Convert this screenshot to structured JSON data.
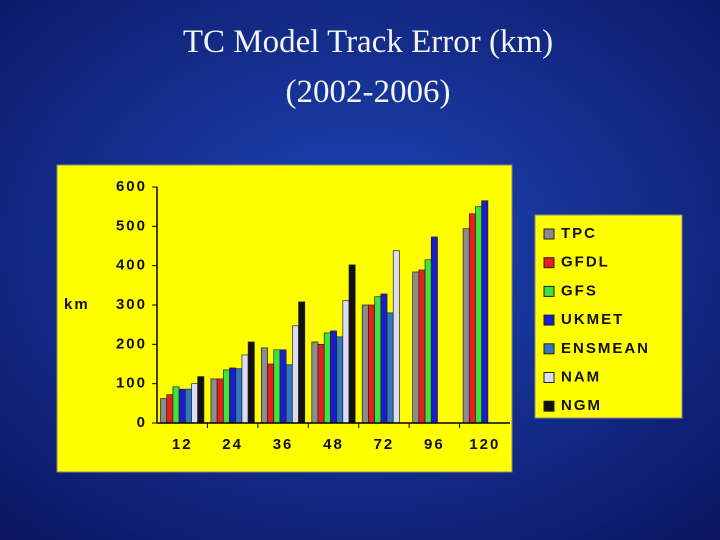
{
  "chart_data": {
    "type": "bar",
    "title": "TC Model Track Error (km)",
    "subtitle": "(2002-2006)",
    "y_label": "km",
    "categories": [
      "12",
      "24",
      "36",
      "48",
      "72",
      "96",
      "120"
    ],
    "series": [
      {
        "name": "TPC",
        "color": "#8c8c8c",
        "values": [
          62,
          112,
          191,
          206,
          300,
          384,
          494
        ]
      },
      {
        "name": "GFDL",
        "color": "#e8201c",
        "values": [
          72,
          112,
          150,
          200,
          300,
          389,
          532
        ]
      },
      {
        "name": "GFS",
        "color": "#3ce43c",
        "values": [
          92,
          135,
          186,
          229,
          321,
          415,
          550
        ]
      },
      {
        "name": "UKMET",
        "color": "#1c1ccc",
        "values": [
          86,
          140,
          186,
          234,
          328,
          473,
          565
        ]
      },
      {
        "name": "ENSMEAN",
        "color": "#2f78c0",
        "values": [
          86,
          138,
          148,
          219,
          280,
          null,
          null
        ]
      },
      {
        "name": "NAM",
        "color": "#dcdcf4",
        "values": [
          100,
          173,
          247,
          311,
          438,
          null,
          null
        ]
      },
      {
        "name": "NGM",
        "color": "#111111",
        "values": [
          118,
          206,
          308,
          402,
          null,
          null,
          null
        ]
      }
    ],
    "ylim": [
      0,
      600
    ],
    "yticks": [
      0,
      100,
      200,
      300,
      400,
      500,
      600
    ],
    "grid": false,
    "legend": "right"
  }
}
